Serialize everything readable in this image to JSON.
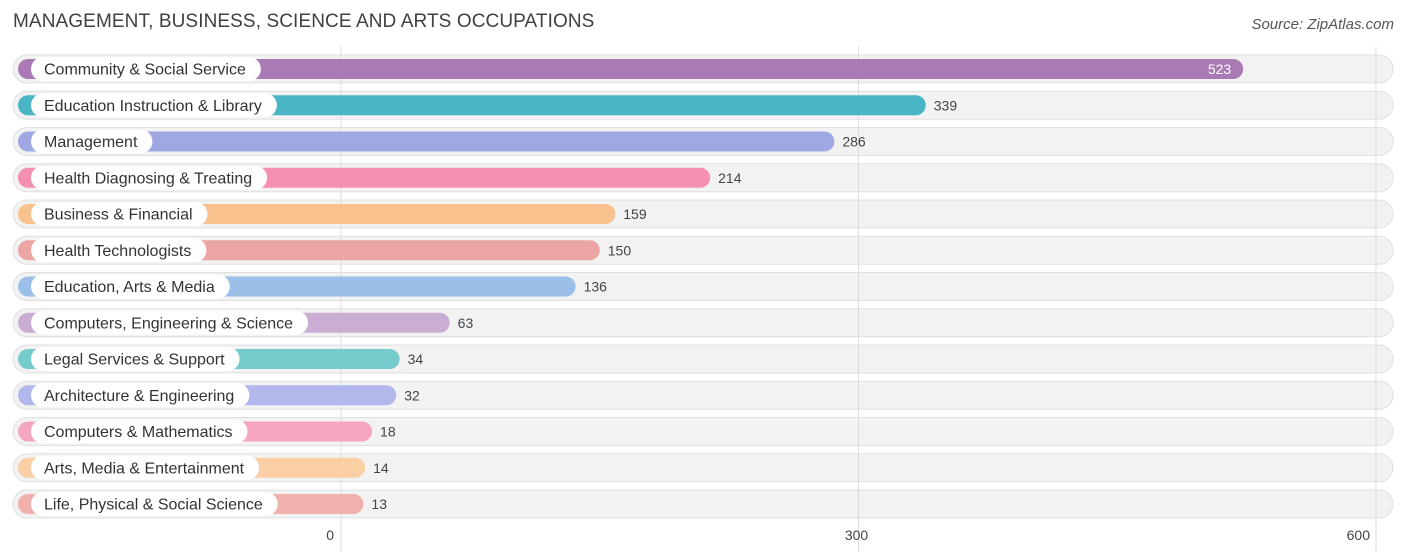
{
  "header": {
    "title": "MANAGEMENT, BUSINESS, SCIENCE AND ARTS OCCUPATIONS",
    "source": "Source: ZipAtlas.com"
  },
  "chart_data": {
    "type": "bar",
    "orientation": "horizontal",
    "title": "MANAGEMENT, BUSINESS, SCIENCE AND ARTS OCCUPATIONS",
    "xlabel": "",
    "ylabel": "",
    "xlim": [
      0,
      600
    ],
    "x_ticks": [
      "0",
      "300",
      "600"
    ],
    "grid": true,
    "categories": [
      "Community & Social Service",
      "Education Instruction & Library",
      "Management",
      "Health Diagnosing & Treating",
      "Business & Financial",
      "Health Technologists",
      "Education, Arts & Media",
      "Computers, Engineering & Science",
      "Legal Services & Support",
      "Architecture & Engineering",
      "Computers & Mathematics",
      "Arts, Media & Entertainment",
      "Life, Physical & Social Science"
    ],
    "values": [
      523,
      339,
      286,
      214,
      159,
      150,
      136,
      63,
      34,
      32,
      18,
      14,
      13
    ],
    "value_labels": [
      "523",
      "339",
      "286",
      "214",
      "159",
      "150",
      "136",
      "63",
      "34",
      "32",
      "18",
      "14",
      "13"
    ],
    "colors": [
      "#a97ab4",
      "#4ab5c4",
      "#9fa8e3",
      "#f48fb1",
      "#f9c18e",
      "#eba5a5",
      "#9bbfe9",
      "#c9add3",
      "#76cbcc",
      "#b2b8ec",
      "#f7a6c2",
      "#f9cfa3",
      "#f1b0ae"
    ]
  }
}
